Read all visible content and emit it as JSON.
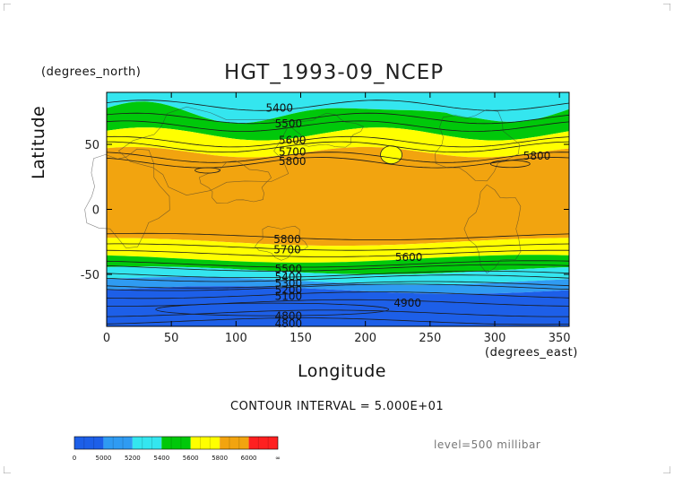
{
  "chart_data": {
    "type": "heatmap",
    "title": "HGT_1993-09_NCEP",
    "xlabel": "Longitude",
    "ylabel": "Latitude",
    "x_units": "(degrees_east)",
    "y_units": "(degrees_north)",
    "xlim": [
      0,
      357.5
    ],
    "ylim": [
      -90,
      90
    ],
    "x_ticks": [
      0,
      50,
      100,
      150,
      200,
      250,
      300,
      350
    ],
    "y_ticks": [
      -50,
      0,
      50
    ],
    "grid": false,
    "colorbar_labels": [
      "0",
      "5000",
      "5200",
      "5400",
      "5600",
      "5800",
      "6000",
      "∞"
    ],
    "colors": [
      "#1d5fe8",
      "#2f9bf2",
      "#34e6ef",
      "#00c80a",
      "#ffff00",
      "#f2a40f",
      "#ff2020"
    ],
    "contour_labels": [
      {
        "text": "5400",
        "lon": 123,
        "lat": 78
      },
      {
        "text": "5500",
        "lon": 130,
        "lat": 66
      },
      {
        "text": "5600",
        "lon": 133,
        "lat": 53
      },
      {
        "text": "5700",
        "lon": 133,
        "lat": 44
      },
      {
        "text": "5800",
        "lon": 133,
        "lat": 37
      },
      {
        "text": "5800",
        "lon": 322,
        "lat": 41
      },
      {
        "text": "5800",
        "lon": 129,
        "lat": -23
      },
      {
        "text": "5700",
        "lon": 129,
        "lat": -31
      },
      {
        "text": "5600",
        "lon": 223,
        "lat": -37
      },
      {
        "text": "5500",
        "lon": 130,
        "lat": -46
      },
      {
        "text": "5400",
        "lon": 130,
        "lat": -52
      },
      {
        "text": "5300",
        "lon": 130,
        "lat": -57
      },
      {
        "text": "5200",
        "lon": 130,
        "lat": -62
      },
      {
        "text": "5100",
        "lon": 130,
        "lat": -67
      },
      {
        "text": "4900",
        "lon": 222,
        "lat": -72
      },
      {
        "text": "4800",
        "lon": 130,
        "lat": -82
      },
      {
        "text": "4800",
        "lon": 130,
        "lat": -88
      }
    ]
  },
  "footer": {
    "contour_interval": "CONTOUR INTERVAL = 5.000E+01",
    "level": "level=500 millibar"
  }
}
